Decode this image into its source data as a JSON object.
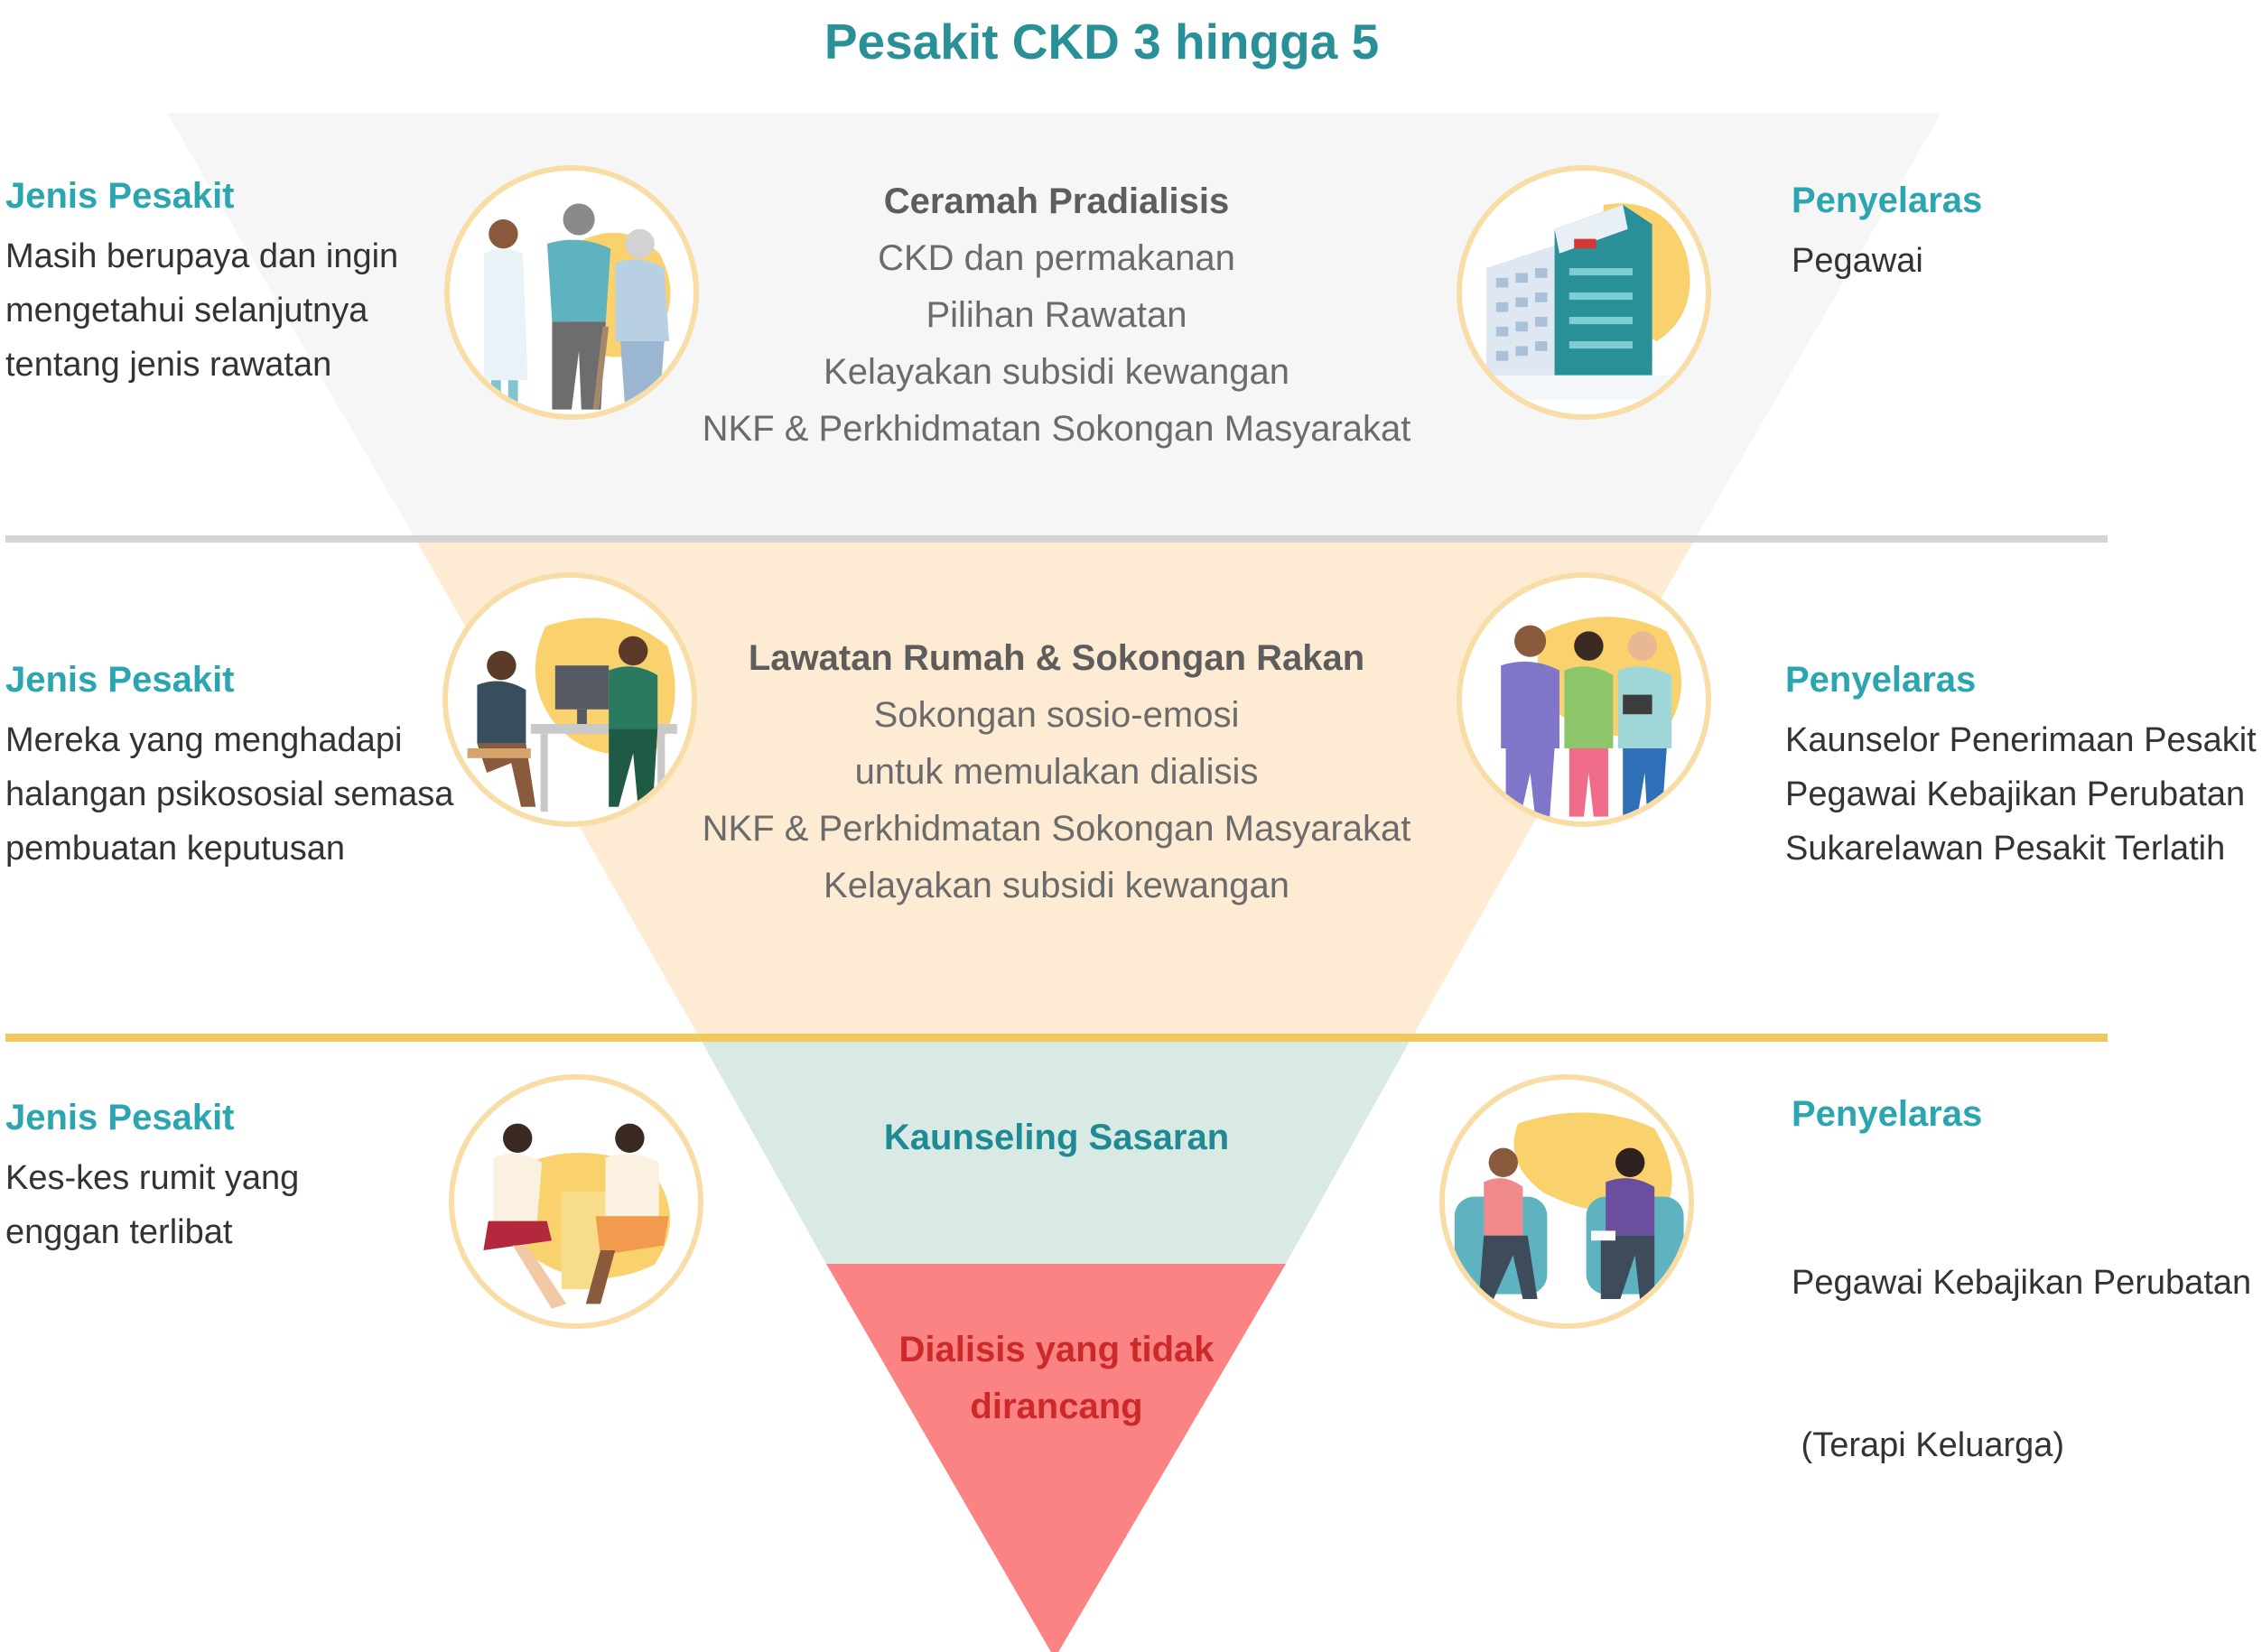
{
  "title": "Pesakit CKD 3 hingga 5",
  "colors": {
    "title": "#2a9098",
    "side_heading": "#2ba6b0",
    "level1": "#f6f6f6",
    "level2": "#fdecd3",
    "level3": "#d9eae4",
    "level4": "#fb8383",
    "divider1": "#d4d4d4",
    "divider2": "#f3c85b",
    "level3_heading": "#1f8a93",
    "level4_text": "#cc2a2a"
  },
  "levels": [
    {
      "patient_heading": "Jenis Pesakit",
      "patient_lines": [
        "Masih berupaya dan ingin",
        "mengetahui selanjutnya",
        "tentang jenis rawatan"
      ],
      "center_heading": "Ceramah Pradialisis",
      "center_lines": [
        "CKD dan permakanan",
        "Pilihan Rawatan",
        "Kelayakan subsidi kewangan",
        "NKF & Perkhidmatan Sokongan Masyarakat"
      ],
      "coordinator_heading": "Penyelaras",
      "coordinator_lines": [
        "Pegawai"
      ],
      "left_icon": "doctor-elderly-couple-icon",
      "right_icon": "nkf-hospital-building-icon"
    },
    {
      "patient_heading": "Jenis Pesakit",
      "patient_lines": [
        "Mereka yang menghadapi",
        "halangan psikososial semasa",
        "pembuatan keputusan"
      ],
      "center_heading": "Lawatan Rumah & Sokongan Rakan",
      "center_lines": [
        "Sokongan sosio-emosi",
        "untuk memulakan dialisis",
        "NKF & Perkhidmatan Sokongan Masyarakat",
        "Kelayakan subsidi kewangan"
      ],
      "coordinator_heading": "Penyelaras",
      "coordinator_lines": [
        "Kaunselor Penerimaan Pesakit",
        "Pegawai Kebajikan Perubatan",
        "Sukarelawan Pesakit Terlatih"
      ],
      "left_icon": "home-visit-consultation-icon",
      "right_icon": "medical-staff-group-icon"
    },
    {
      "patient_heading": "Jenis Pesakit",
      "patient_lines": [
        "Kes-kes rumit yang",
        "enggan terlibat"
      ],
      "center_heading": "Kaunseling Sasaran",
      "coordinator_heading": "Penyelaras",
      "coordinator_lines": [
        "Pegawai Kebajikan Perubatan",
        " (Terapi Keluarga)"
      ],
      "left_icon": "counselling-session-icon",
      "right_icon": "family-therapy-icon"
    },
    {
      "center_lines": [
        "Dialisis yang tidak",
        "dirancang"
      ]
    }
  ]
}
